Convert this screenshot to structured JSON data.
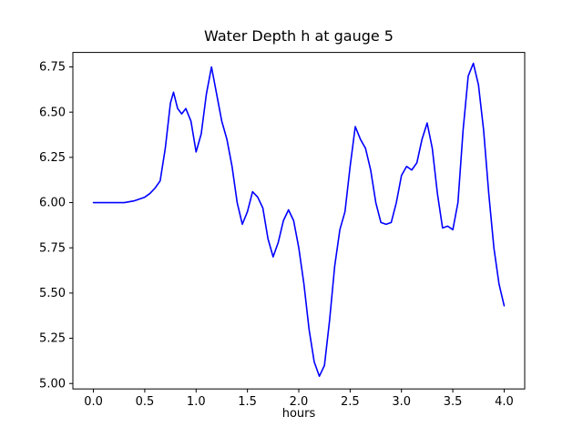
{
  "figure": {
    "background": "#ffffff"
  },
  "chart_data": {
    "type": "line",
    "title": "Water Depth h at gauge 5",
    "xlabel": "hours",
    "ylabel": "",
    "grid": false,
    "legend": null,
    "line_color": "#0000ff",
    "xlim": [
      -0.2,
      4.2
    ],
    "ylim": [
      4.97,
      6.83
    ],
    "xticks": [
      0.0,
      0.5,
      1.0,
      1.5,
      2.0,
      2.5,
      3.0,
      3.5,
      4.0
    ],
    "xtick_labels": [
      "0.0",
      "0.5",
      "1.0",
      "1.5",
      "2.0",
      "2.5",
      "3.0",
      "3.5",
      "4.0"
    ],
    "yticks": [
      5.0,
      5.25,
      5.5,
      5.75,
      6.0,
      6.25,
      6.5,
      6.75
    ],
    "ytick_labels": [
      "5.00",
      "5.25",
      "5.50",
      "5.75",
      "6.00",
      "6.25",
      "6.50",
      "6.75"
    ],
    "series": [
      {
        "name": "water-depth-h",
        "color": "#0000ff",
        "x": [
          0.0,
          0.1,
          0.2,
          0.3,
          0.4,
          0.5,
          0.55,
          0.6,
          0.65,
          0.7,
          0.75,
          0.78,
          0.82,
          0.86,
          0.9,
          0.95,
          1.0,
          1.05,
          1.1,
          1.15,
          1.2,
          1.25,
          1.3,
          1.35,
          1.4,
          1.45,
          1.5,
          1.55,
          1.6,
          1.65,
          1.7,
          1.75,
          1.8,
          1.85,
          1.9,
          1.95,
          2.0,
          2.05,
          2.1,
          2.15,
          2.2,
          2.25,
          2.3,
          2.35,
          2.4,
          2.45,
          2.5,
          2.55,
          2.6,
          2.65,
          2.7,
          2.75,
          2.8,
          2.85,
          2.9,
          2.95,
          3.0,
          3.05,
          3.1,
          3.15,
          3.2,
          3.25,
          3.3,
          3.35,
          3.4,
          3.45,
          3.5,
          3.55,
          3.6,
          3.65,
          3.7,
          3.75,
          3.8,
          3.85,
          3.9,
          3.95,
          4.0
        ],
        "y": [
          6.0,
          6.0,
          6.0,
          6.0,
          6.01,
          6.03,
          6.05,
          6.08,
          6.12,
          6.3,
          6.55,
          6.61,
          6.52,
          6.49,
          6.52,
          6.45,
          6.28,
          6.38,
          6.6,
          6.75,
          6.6,
          6.45,
          6.35,
          6.2,
          6.0,
          5.88,
          5.95,
          6.06,
          6.03,
          5.97,
          5.8,
          5.7,
          5.78,
          5.9,
          5.96,
          5.9,
          5.75,
          5.55,
          5.3,
          5.12,
          5.04,
          5.1,
          5.35,
          5.65,
          5.85,
          5.95,
          6.2,
          6.42,
          6.35,
          6.3,
          6.18,
          6.0,
          5.89,
          5.88,
          5.89,
          6.0,
          6.15,
          6.2,
          6.18,
          6.22,
          6.35,
          6.44,
          6.3,
          6.05,
          5.86,
          5.87,
          5.85,
          6.0,
          6.4,
          6.7,
          6.77,
          6.65,
          6.4,
          6.05,
          5.75,
          5.55,
          5.43
        ]
      }
    ]
  }
}
